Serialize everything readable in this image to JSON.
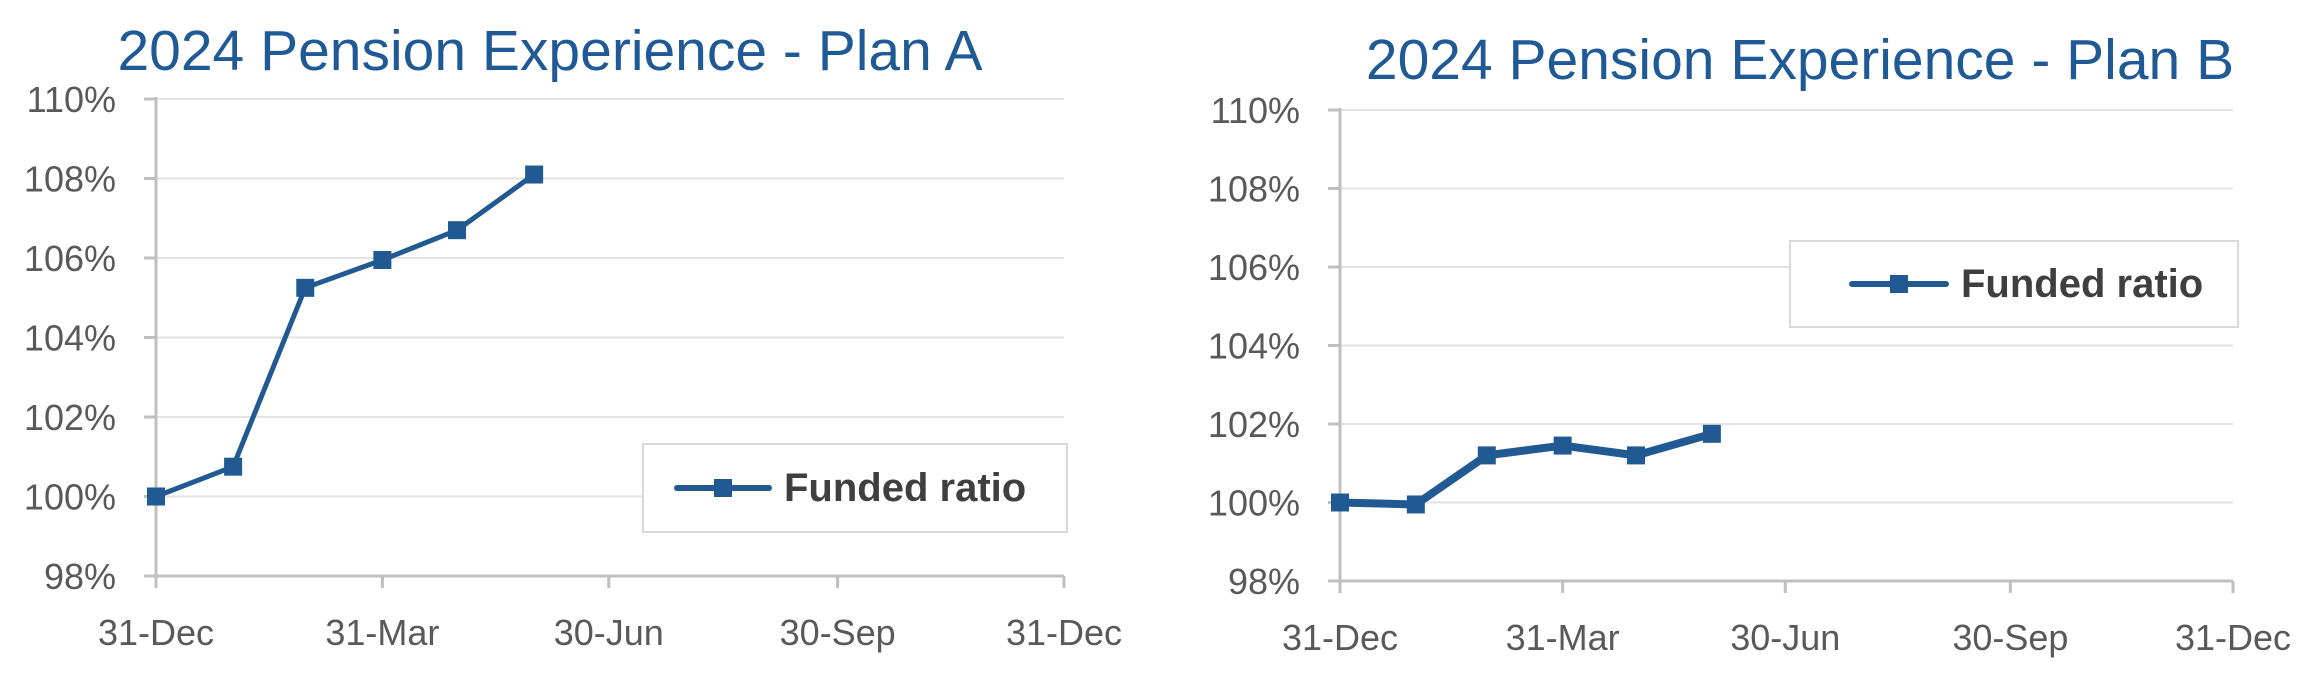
{
  "colors": {
    "title": "#1f5a96",
    "series": "#215a92",
    "axis": "#bfbfbf",
    "grid": "#e3e3e3",
    "tick_text": "#595959"
  },
  "chart_data": [
    {
      "type": "line",
      "title": "2024 Pension Experience - Plan A",
      "xlabel": "",
      "ylabel": "",
      "x_ticks": [
        "31-Dec",
        "31-Mar",
        "30-Jun",
        "30-Sep",
        "31-Dec"
      ],
      "y_ticks": [
        "98%",
        "100%",
        "102%",
        "104%",
        "106%",
        "108%",
        "110%"
      ],
      "ylim": [
        98,
        110
      ],
      "xlim_days": [
        0,
        365
      ],
      "grid": true,
      "legend_position": "bottom-right",
      "series": [
        {
          "name": "Funded ratio",
          "marker": "square",
          "x": [
            "31-Dec",
            "31-Jan",
            "29-Feb",
            "31-Mar",
            "30-Apr",
            "31-May"
          ],
          "values": [
            100.0,
            100.75,
            105.25,
            105.95,
            106.7,
            108.1
          ]
        }
      ]
    },
    {
      "type": "line",
      "title": "2024 Pension Experience - Plan B",
      "xlabel": "",
      "ylabel": "",
      "x_ticks": [
        "31-Dec",
        "31-Mar",
        "30-Jun",
        "30-Sep",
        "31-Dec"
      ],
      "y_ticks": [
        "98%",
        "100%",
        "102%",
        "104%",
        "106%",
        "108%",
        "110%"
      ],
      "ylim": [
        98,
        110
      ],
      "xlim_days": [
        0,
        365
      ],
      "grid": true,
      "legend_position": "top-right",
      "series": [
        {
          "name": "Funded ratio",
          "marker": "square",
          "x": [
            "31-Dec",
            "31-Jan",
            "29-Feb",
            "31-Mar",
            "30-Apr",
            "31-May"
          ],
          "values": [
            100.0,
            99.95,
            101.2,
            101.45,
            101.2,
            101.75
          ]
        }
      ]
    }
  ]
}
